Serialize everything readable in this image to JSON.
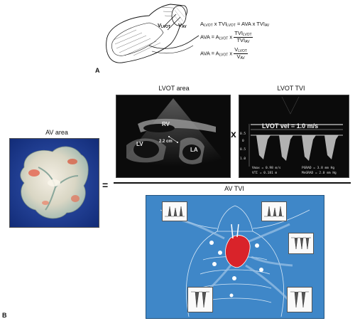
{
  "panel_a": {
    "letter": "A",
    "diagram_labels": {
      "v_lvot": "V",
      "v_lvot_sub": "LVOT",
      "v_av": "V",
      "v_av_sub": "AV"
    },
    "eq1": {
      "a": "A",
      "a_sub": "LVOT",
      "x1": " x TVI",
      "x1_sub": "LVOT",
      "mid": " = AVA x TVI",
      "mid_sub": "AV"
    },
    "eq2": {
      "lhs": "AVA = A",
      "lhs_sub": "LVOT",
      "x": " x ",
      "num": "TVI",
      "num_sub": "LVOT",
      "den": "TVI",
      "den_sub": "AV"
    },
    "eq3": {
      "lhs": "AVA = A",
      "lhs_sub": "LVOT",
      "x": " x ",
      "num": "V",
      "num_sub": "LVOT",
      "den": "V",
      "den_sub": "AV"
    }
  },
  "panel_b": {
    "letter": "B",
    "av_area_title": "AV area",
    "lvot_area_title": "LVOT area",
    "lvot_tvi_title": "LVOT TVI",
    "av_tvi_title": "AV TVI",
    "equals": "=",
    "times": "x",
    "echo_labels": {
      "rv": "RV",
      "lv": "LV",
      "la": "LA",
      "measure": "2.2 cm"
    },
    "doppler": {
      "vel_label": "LVOT vel = 1.0 m/s",
      "scale": [
        "0.5",
        "0",
        "0.5",
        "1.0"
      ],
      "readouts": {
        "vmax": "Vmax = 0.98 m/s",
        "vti": "VTI = 0.181 m",
        "pgrad": "PGRAD = 3.8 mm Hg",
        "mngrad": "MnGRAD = 2.0 mm Hg"
      }
    }
  },
  "colors": {
    "av_tvi_bg": "#3f87c8",
    "valve_red": "#d9232a",
    "echo_bg": "#0b0b0b"
  }
}
